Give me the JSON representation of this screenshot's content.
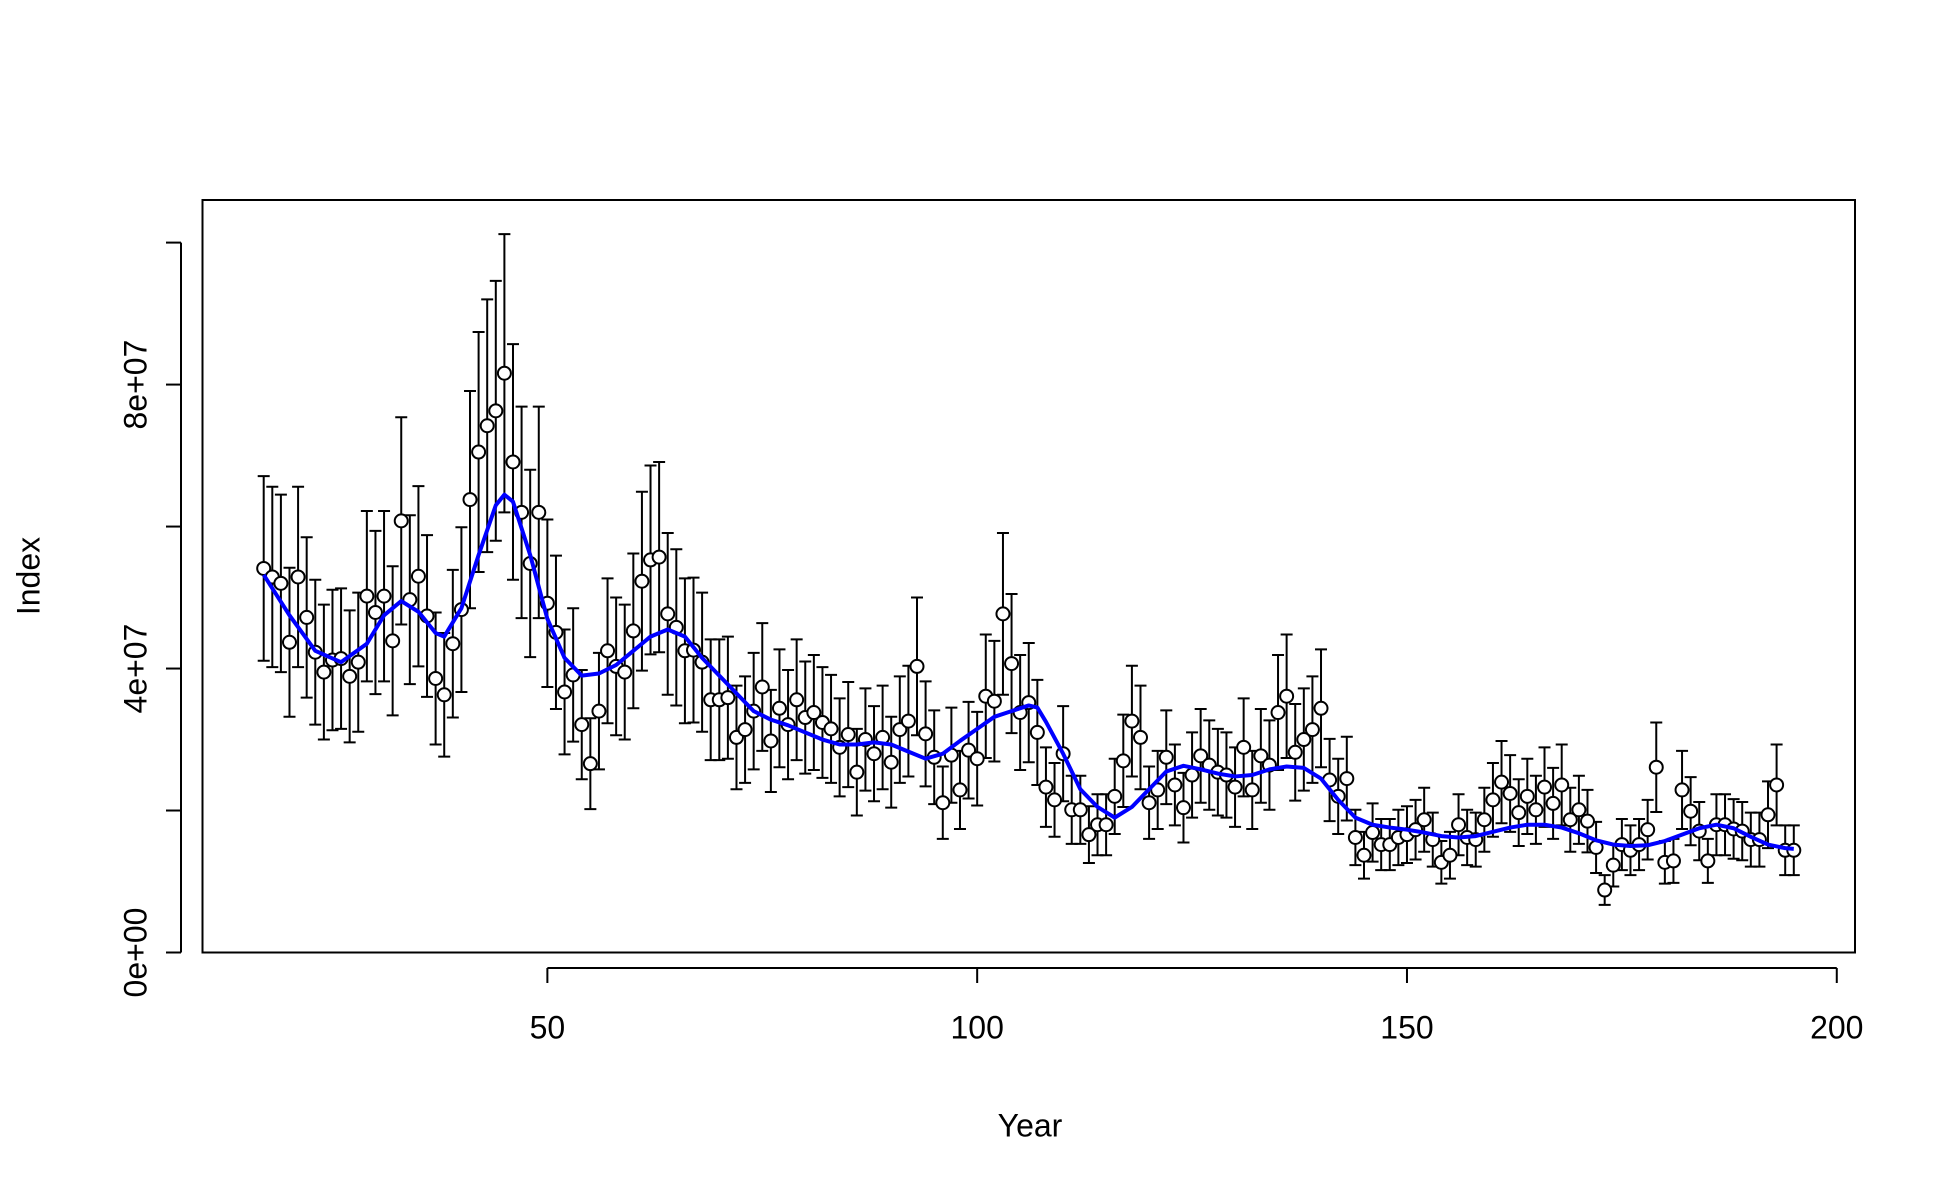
{
  "chart_data": {
    "type": "scatter",
    "xlabel": "Year",
    "ylabel": "Index",
    "xlim": [
      9.88,
      202.12
    ],
    "ylim": [
      0,
      106000000.0
    ],
    "xticks": [
      50,
      100,
      150,
      200
    ],
    "yticks": [
      {
        "value": 0,
        "label": "0e+00"
      },
      {
        "value": 20000000.0,
        "label": null
      },
      {
        "value": 40000000.0,
        "label": "4e+07"
      },
      {
        "value": 60000000.0,
        "label": null
      },
      {
        "value": 80000000.0,
        "label": "8e+07"
      },
      {
        "value": 100000000.0,
        "label": null
      }
    ],
    "series": [
      {
        "color": "#000000",
        "x": [
          17,
          18,
          19,
          20,
          21,
          22,
          23,
          24,
          25,
          26,
          27,
          28,
          29,
          30,
          31,
          32,
          33,
          34,
          35,
          36,
          37,
          38,
          39,
          40,
          41,
          42,
          43,
          44,
          45,
          46,
          47,
          48,
          49,
          50,
          51,
          52,
          53,
          54,
          55,
          56,
          57,
          58,
          59,
          60,
          61,
          62,
          63,
          64,
          65,
          66,
          67,
          68,
          69,
          70,
          71,
          72,
          73,
          74,
          75,
          76,
          77,
          78,
          79,
          80,
          81,
          82,
          83,
          84,
          85,
          86,
          87,
          88,
          89,
          90,
          91,
          92,
          93,
          94,
          95,
          96,
          97,
          98,
          99,
          100,
          101,
          102,
          103,
          104,
          105,
          106,
          107,
          108,
          109,
          110,
          111,
          112,
          113,
          114,
          115,
          116,
          117,
          118,
          119,
          120,
          121,
          122,
          123,
          124,
          125,
          126,
          127,
          128,
          129,
          130,
          131,
          132,
          133,
          134,
          135,
          136,
          137,
          138,
          139,
          140,
          141,
          142,
          143,
          144,
          145,
          146,
          147,
          148,
          149,
          150,
          151,
          152,
          153,
          154,
          155,
          156,
          157,
          158,
          159,
          160,
          161,
          162,
          163,
          164,
          165,
          166,
          167,
          168,
          169,
          170,
          171,
          172,
          173,
          174,
          175,
          176,
          177,
          178,
          179,
          180,
          181,
          182,
          183,
          184,
          185,
          186,
          187,
          188,
          189,
          190,
          191,
          192,
          193,
          194,
          195
        ],
        "values": [
          54100000.0,
          52900000.0,
          52000000.0,
          43700000.0,
          52900000.0,
          47200000.0,
          42300000.0,
          39500000.0,
          41200000.0,
          41400000.0,
          38900000.0,
          40900000.0,
          50200000.0,
          47900000.0,
          50200000.0,
          43900000.0,
          60800000.0,
          49700000.0,
          53000000.0,
          47400000.0,
          38600000.0,
          36300000.0,
          43500000.0,
          48300000.0,
          63800000.0,
          70500000.0,
          74200000.0,
          76300000.0,
          81600000.0,
          69100000.0,
          62000000.0,
          54800000.0,
          62000000.0,
          49200000.0,
          45100000.0,
          36700000.0,
          39100000.0,
          32100000.0,
          26600000.0,
          34000000.0,
          42500000.0,
          40300000.0,
          39500000.0,
          45300000.0,
          52300000.0,
          55300000.0,
          55700000.0,
          47700000.0,
          45800000.0,
          42500000.0,
          42600000.0,
          40900000.0,
          35600000.0,
          35600000.0,
          35900000.0,
          30300000.0,
          31400000.0,
          34000000.0,
          37400000.0,
          29800000.0,
          34400000.0,
          32100000.0,
          35600000.0,
          33100000.0,
          33800000.0,
          32400000.0,
          31500000.0,
          28900000.0,
          30700000.0,
          25400000.0,
          30000000.0,
          28000000.0,
          30300000.0,
          26800000.0,
          31400000.0,
          32600000.0,
          40300000.0,
          30800000.0,
          27500000.0,
          21100000.0,
          27800000.0,
          22900000.0,
          28500000.0,
          27300000.0,
          36100000.0,
          35400000.0,
          47700000.0,
          40700000.0,
          33800000.0,
          35200000.0,
          31000000.0,
          23300000.0,
          21500000.0,
          28000000.0,
          20100000.0,
          20100000.0,
          16600000.0,
          18000000.0,
          18000000.0,
          22000000.0,
          27000000.0,
          32600000.0,
          30300000.0,
          21100000.0,
          22900000.0,
          27500000.0,
          23600000.0,
          20400000.0,
          25000000.0,
          27700000.0,
          26400000.0,
          25400000.0,
          25000000.0,
          23300000.0,
          28900000.0,
          22900000.0,
          27700000.0,
          26400000.0,
          33800000.0,
          36100000.0,
          28200000.0,
          30000000.0,
          31400000.0,
          34400000.0,
          24300000.0,
          22000000.0,
          24500000.0,
          16200000.0,
          13700000.0,
          16900000.0,
          15200000.0,
          15200000.0,
          16200000.0,
          16600000.0,
          17300000.0,
          18700000.0,
          15900000.0,
          12700000.0,
          13700000.0,
          18000000.0,
          16200000.0,
          15900000.0,
          18700000.0,
          21500000.0,
          24000000.0,
          22400000.0,
          19700000.0,
          22000000.0,
          20100000.0,
          23300000.0,
          21000000.0,
          23600000.0,
          18700000.0,
          20100000.0,
          18500000.0,
          14800000.0,
          8800000.0,
          12300000.0,
          15200000.0,
          14400000.0,
          15200000.0,
          17300000.0,
          26100000.0,
          12700000.0,
          12900000.0,
          22900000.0,
          19900000.0,
          17100000.0,
          12900000.0,
          18000000.0,
          18000000.0,
          17400000.0,
          17100000.0,
          15900000.0,
          15900000.0,
          19400000.0,
          23600000.0,
          14400000.0,
          14400000.0
        ],
        "errors": [
          13000000.0,
          12700000.0,
          12500000.0,
          10500000.0,
          12700000.0,
          11300000.0,
          10200000.0,
          9500000.0,
          9900000.0,
          9900000.0,
          9300000.0,
          9800000.0,
          12000000.0,
          11500000.0,
          12000000.0,
          10500000.0,
          14600000.0,
          11900000.0,
          12700000.0,
          11400000.0,
          9300000.0,
          8700000.0,
          10400000.0,
          11600000.0,
          15300000.0,
          16900000.0,
          17800000.0,
          18300000.0,
          19600000.0,
          16600000.0,
          14900000.0,
          13200000.0,
          14900000.0,
          11800000.0,
          10800000.0,
          8800000.0,
          9400000.0,
          7700000.0,
          6400000.0,
          8200000.0,
          10200000.0,
          9700000.0,
          9500000.0,
          10900000.0,
          12600000.0,
          13300000.0,
          13400000.0,
          11400000.0,
          11000000.0,
          10200000.0,
          10200000.0,
          9800000.0,
          8500000.0,
          8500000.0,
          8600000.0,
          7300000.0,
          7500000.0,
          8200000.0,
          9000000.0,
          7200000.0,
          8300000.0,
          7700000.0,
          8500000.0,
          7900000.0,
          8100000.0,
          7800000.0,
          7600000.0,
          6900000.0,
          7400000.0,
          6100000.0,
          7200000.0,
          6700000.0,
          7300000.0,
          6400000.0,
          7500000.0,
          7800000.0,
          9700000.0,
          7400000.0,
          6600000.0,
          5100000.0,
          6700000.0,
          5500000.0,
          6800000.0,
          6600000.0,
          8700000.0,
          8500000.0,
          11400000.0,
          9800000.0,
          8100000.0,
          8400000.0,
          7400000.0,
          5600000.0,
          5200000.0,
          6700000.0,
          4800000.0,
          4800000.0,
          4000000.0,
          4300000.0,
          4300000.0,
          5300000.0,
          6500000.0,
          7800000.0,
          7300000.0,
          5100000.0,
          5500000.0,
          6600000.0,
          5700000.0,
          4900000.0,
          6000000.0,
          6600000.0,
          6300000.0,
          6100000.0,
          6000000.0,
          5600000.0,
          6900000.0,
          5500000.0,
          6600000.0,
          6300000.0,
          8100000.0,
          8700000.0,
          6800000.0,
          7200000.0,
          7500000.0,
          8300000.0,
          5800000.0,
          5300000.0,
          5900000.0,
          3900000.0,
          3300000.0,
          4100000.0,
          3600000.0,
          3600000.0,
          3900000.0,
          4000000.0,
          4200000.0,
          4500000.0,
          3800000.0,
          3000000.0,
          3300000.0,
          4300000.0,
          3900000.0,
          3800000.0,
          4500000.0,
          5200000.0,
          5800000.0,
          5400000.0,
          4700000.0,
          5300000.0,
          4800000.0,
          5600000.0,
          5000000.0,
          5700000.0,
          4500000.0,
          4800000.0,
          4400000.0,
          3600000.0,
          2100000.0,
          3000000.0,
          3600000.0,
          3500000.0,
          3600000.0,
          4200000.0,
          6300000.0,
          3000000.0,
          3100000.0,
          5500000.0,
          4800000.0,
          4100000.0,
          3100000.0,
          4300000.0,
          4300000.0,
          4200000.0,
          4100000.0,
          3800000.0,
          3800000.0,
          4700000.0,
          5700000.0,
          3500000.0,
          3500000.0
        ]
      },
      {
        "color": "#0000ff",
        "x": [
          17,
          20,
          23,
          26,
          29,
          31,
          33,
          35,
          37,
          38,
          40,
          42,
          44,
          45,
          46,
          48,
          50,
          52,
          54,
          56,
          58,
          60,
          62,
          64,
          66,
          68,
          70,
          72,
          74,
          76,
          78,
          80,
          82,
          84,
          86,
          88,
          90,
          92,
          94,
          96,
          98,
          100,
          102,
          104,
          106,
          107,
          108,
          110,
          112,
          114,
          116,
          118,
          120,
          122,
          124,
          126,
          128,
          130,
          132,
          134,
          136,
          138,
          140,
          142,
          144,
          146,
          148,
          150,
          152,
          154,
          156,
          158,
          160,
          162,
          164,
          166,
          168,
          170,
          172,
          174,
          176,
          178,
          180,
          182,
          184,
          186,
          188,
          190,
          192,
          194,
          195
        ],
        "values": [
          53200000.0,
          47500000.0,
          42500000.0,
          40900000.0,
          43500000.0,
          47500000.0,
          49500000.0,
          48000000.0,
          45000000.0,
          44500000.0,
          48500000.0,
          56000000.0,
          63000000.0,
          64500000.0,
          63500000.0,
          56000000.0,
          47000000.0,
          41500000.0,
          39000000.0,
          39300000.0,
          40500000.0,
          42500000.0,
          44500000.0,
          45500000.0,
          44500000.0,
          41500000.0,
          39000000.0,
          36500000.0,
          34000000.0,
          32800000.0,
          32000000.0,
          31000000.0,
          30000000.0,
          29300000.0,
          29300000.0,
          29600000.0,
          29300000.0,
          28300000.0,
          27300000.0,
          28000000.0,
          29800000.0,
          31500000.0,
          33200000.0,
          34000000.0,
          34800000.0,
          34500000.0,
          32500000.0,
          28000000.0,
          23000000.0,
          20500000.0,
          19000000.0,
          20500000.0,
          23000000.0,
          25500000.0,
          26300000.0,
          25800000.0,
          25200000.0,
          24800000.0,
          25000000.0,
          25800000.0,
          26200000.0,
          26000000.0,
          24500000.0,
          21500000.0,
          19000000.0,
          18000000.0,
          17600000.0,
          17300000.0,
          16900000.0,
          16400000.0,
          16200000.0,
          16400000.0,
          17000000.0,
          17600000.0,
          18000000.0,
          18000000.0,
          17600000.0,
          16800000.0,
          15800000.0,
          15200000.0,
          15000000.0,
          15100000.0,
          15700000.0,
          16600000.0,
          17500000.0,
          18000000.0,
          17500000.0,
          16300000.0,
          15200000.0,
          14700000.0,
          14600000.0
        ]
      }
    ]
  }
}
